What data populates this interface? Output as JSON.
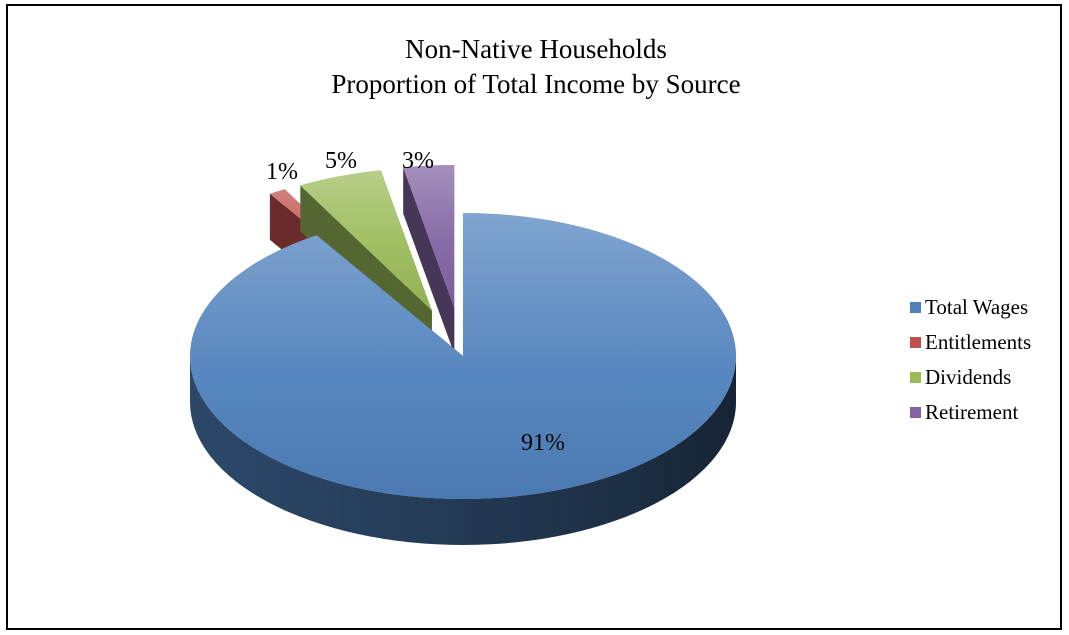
{
  "chart_data": {
    "type": "pie",
    "title": [
      "Non-Native Households",
      "Proportion of Total Income by Source"
    ],
    "slices": [
      {
        "label": "Total Wages",
        "value": 91,
        "data_label": "91%",
        "color": "#4F81BD"
      },
      {
        "label": "Entitlements",
        "value": 1,
        "data_label": "1%",
        "color": "#C0504D"
      },
      {
        "label": "Dividends",
        "value": 5,
        "data_label": "5%",
        "color": "#9BBB59"
      },
      {
        "label": "Retirement",
        "value": 3,
        "data_label": "3%",
        "color": "#8064A2"
      }
    ],
    "style": "3d-exploded",
    "legend_position": "right"
  }
}
